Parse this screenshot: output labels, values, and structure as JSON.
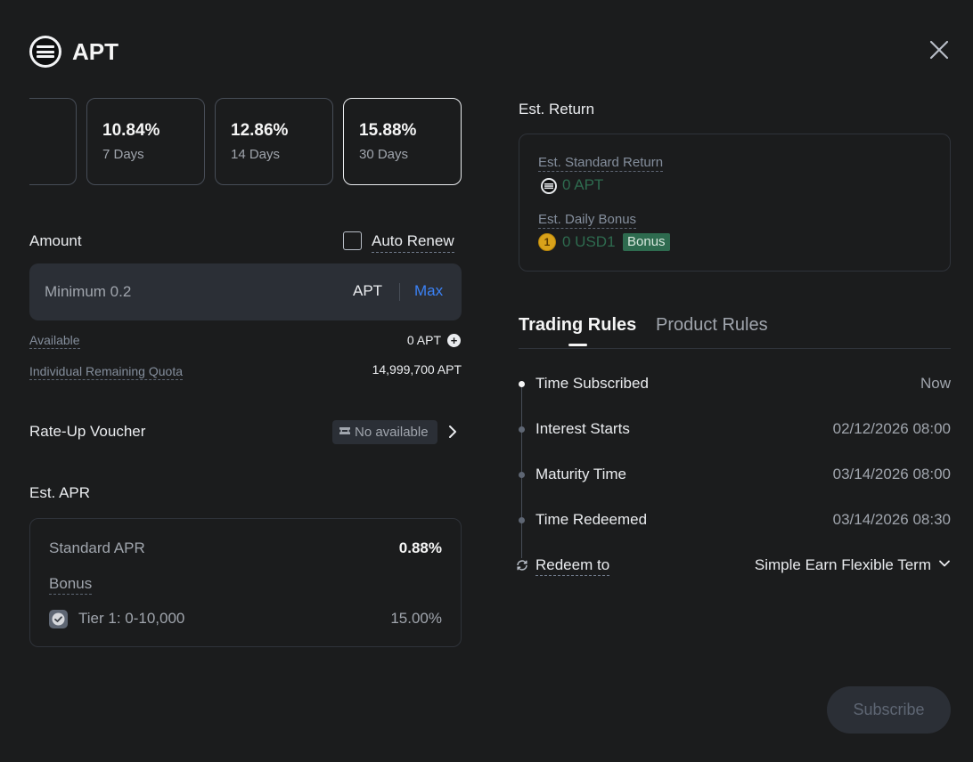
{
  "header": {
    "title": "APT",
    "logo_icon": "aptos-logo-icon",
    "close_icon": "close-icon"
  },
  "terms": [
    {
      "apr": "10.84%",
      "days": "7 Days",
      "selected": false
    },
    {
      "apr": "12.86%",
      "days": "14 Days",
      "selected": false
    },
    {
      "apr": "15.88%",
      "days": "30 Days",
      "selected": true
    }
  ],
  "amount": {
    "label": "Amount",
    "auto_renew_label": "Auto Renew",
    "auto_renew_checked": false,
    "placeholder": "Minimum 0.2",
    "value": "",
    "unit": "APT",
    "max_label": "Max"
  },
  "available": {
    "label": "Available",
    "value": "0 APT"
  },
  "quota": {
    "label": "Individual Remaining Quota",
    "value": "14,999,700 APT"
  },
  "voucher": {
    "label": "Rate-Up Voucher",
    "status": "No available"
  },
  "est_apr": {
    "title": "Est. APR",
    "standard_label": "Standard APR",
    "standard_value": "0.88%",
    "bonus_label": "Bonus",
    "tier_label": "Tier 1: 0-10,000",
    "tier_value": "15.00%"
  },
  "est_return": {
    "title": "Est. Return",
    "standard_label": "Est. Standard Return",
    "standard_value": "0 APT",
    "daily_bonus_label": "Est. Daily Bonus",
    "daily_bonus_value": "0 USD1",
    "bonus_tag": "Bonus",
    "usd1_coin_text": "1",
    "value_color": "#2e6b4f"
  },
  "tabs": [
    {
      "label": "Trading Rules",
      "active": true
    },
    {
      "label": "Product Rules",
      "active": false
    }
  ],
  "rules": [
    {
      "label": "Time Subscribed",
      "value": "Now"
    },
    {
      "label": "Interest Starts",
      "value": "02/12/2026 08:00"
    },
    {
      "label": "Maturity Time",
      "value": "03/14/2026 08:00"
    },
    {
      "label": "Time Redeemed",
      "value": "03/14/2026 08:30"
    }
  ],
  "redeem": {
    "label": "Redeem to",
    "value": "Simple Earn Flexible Term"
  },
  "subscribe": {
    "label": "Subscribe"
  },
  "colors": {
    "background": "#1b1c1d",
    "link_blue": "#3b82f6",
    "bonus_green": "#2e6b4f"
  }
}
